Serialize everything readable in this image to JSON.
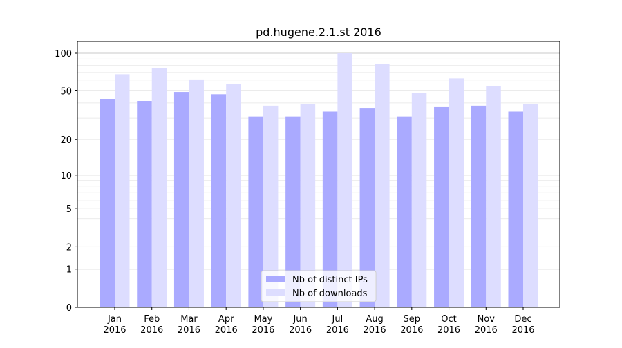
{
  "chart_data": {
    "type": "bar",
    "title": "pd.hugene.2.1.st 2016",
    "xlabel": "",
    "ylabel": "",
    "yscale": "log(1+x)",
    "ylim": [
      0,
      124
    ],
    "yticks": [
      0,
      1,
      2,
      5,
      10,
      20,
      50,
      100
    ],
    "grid": true,
    "legend_position": "bottom-center",
    "categories": [
      "Jan\n2016",
      "Feb\n2016",
      "Mar\n2016",
      "Apr\n2016",
      "May\n2016",
      "Jun\n2016",
      "Jul\n2016",
      "Aug\n2016",
      "Sep\n2016",
      "Oct\n2016",
      "Nov\n2016",
      "Dec\n2016"
    ],
    "series": [
      {
        "name": "Nb of distinct IPs",
        "color": "#aaaaff",
        "values": [
          43,
          41,
          49,
          47,
          31,
          31,
          34,
          36,
          31,
          37,
          38,
          34
        ]
      },
      {
        "name": "Nb of downloads",
        "color": "#ddddff",
        "values": [
          68,
          76,
          61,
          57,
          38,
          39,
          100,
          82,
          48,
          63,
          55,
          39
        ]
      }
    ]
  }
}
